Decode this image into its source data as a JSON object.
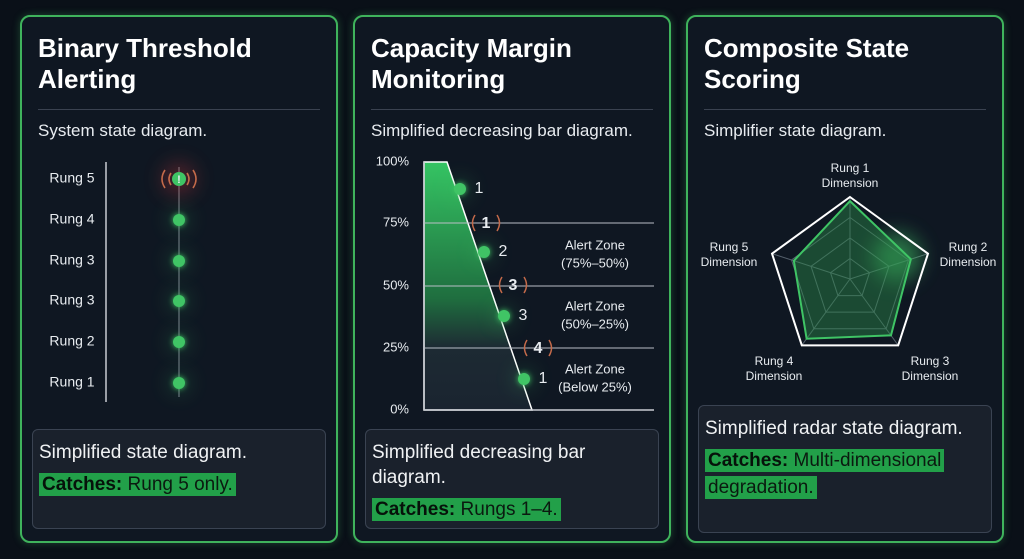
{
  "panels": [
    {
      "title": "Binary Threshold Alerting",
      "subtitle": "System state diagram.",
      "rungs": [
        "Rung 5",
        "Rung 4",
        "Rung 3",
        "Rung 3",
        "Rung 2",
        "Rung 1"
      ],
      "alert_symbol": "!",
      "caption": "Simplified state diagram.",
      "catches_label": "Catches:",
      "catches": "Rung 5 only."
    },
    {
      "title": "Capacity Margin Monitoring",
      "subtitle": "Simplified decreasing bar diagram.",
      "axis_labels": [
        "100%",
        "75%",
        "50%",
        "25%",
        "0%"
      ],
      "markers": [
        "1",
        "2",
        "3",
        "1"
      ],
      "thresholds": [
        "1",
        "3",
        "4"
      ],
      "zones": [
        [
          "Alert Zone",
          "(75%–50%)"
        ],
        [
          "Alert Zone",
          "(50%–25%)"
        ],
        [
          "Alert Zone",
          "(Below 25%)"
        ]
      ],
      "caption": "Simplified decreasing bar diagram.",
      "catches_label": "Catches:",
      "catches": "Rungs 1–4."
    },
    {
      "title": "Composite State Scoring",
      "subtitle": "Simplifier state diagram.",
      "dimensions": [
        [
          "Rung 1",
          "Dimension"
        ],
        [
          "Rung 2",
          "Dimension"
        ],
        [
          "Rung 3",
          "Dimension"
        ],
        [
          "Rung 4",
          "Dimension"
        ],
        [
          "Rung 5",
          "Dimension"
        ]
      ],
      "caption": "Simplified radar state diagram.",
      "catches_label": "Catches:",
      "catches": "Multi-dimensional degradation."
    }
  ]
}
